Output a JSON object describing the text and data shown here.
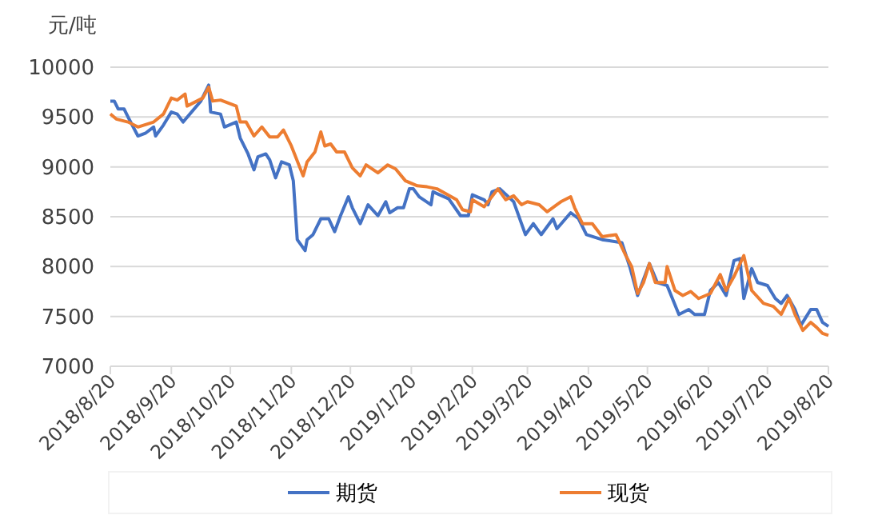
{
  "chart_data": {
    "type": "line",
    "ylabel": "元/吨",
    "xlim": [
      "2018-08-20",
      "2019-08-20"
    ],
    "xticks": [
      {
        "value": "2018-08-20",
        "label": "2018/8/20"
      },
      {
        "value": "2018-09-20",
        "label": "2018/9/20"
      },
      {
        "value": "2018-10-20",
        "label": "2018/10/20"
      },
      {
        "value": "2018-11-20",
        "label": "2018/11/20"
      },
      {
        "value": "2018-12-20",
        "label": "2018/12/20"
      },
      {
        "value": "2019-01-20",
        "label": "2019/1/20"
      },
      {
        "value": "2019-02-20",
        "label": "2019/2/20"
      },
      {
        "value": "2019-03-20",
        "label": "2019/3/20"
      },
      {
        "value": "2019-04-20",
        "label": "2019/4/20"
      },
      {
        "value": "2019-05-20",
        "label": "2019/5/20"
      },
      {
        "value": "2019-06-20",
        "label": "2019/6/20"
      },
      {
        "value": "2019-07-20",
        "label": "2019/7/20"
      },
      {
        "value": "2019-08-20",
        "label": "2019/8/20"
      }
    ],
    "ylim": [
      7000,
      10000
    ],
    "yticks": [
      7000,
      7500,
      8000,
      8500,
      9000,
      9500,
      10000
    ],
    "grid": "y",
    "legend": "bottom",
    "marker": "none",
    "line_style": "solid",
    "series": [
      {
        "name": "期货",
        "color": "#4472c4",
        "x": [
          "2018-08-20",
          "2018-08-22",
          "2018-08-24",
          "2018-08-27",
          "2018-08-29",
          "2018-09-03",
          "2018-09-07",
          "2018-09-11",
          "2018-09-12",
          "2018-09-16",
          "2018-09-20",
          "2018-09-23",
          "2018-09-26",
          "2018-10-05",
          "2018-10-09",
          "2018-10-10",
          "2018-10-15",
          "2018-10-17",
          "2018-10-23",
          "2018-10-25",
          "2018-10-29",
          "2018-11-01",
          "2018-11-03",
          "2018-11-07",
          "2018-11-09",
          "2018-11-12",
          "2018-11-15",
          "2018-11-19",
          "2018-11-21",
          "2018-11-23",
          "2018-11-27",
          "2018-11-28",
          "2018-12-01",
          "2018-12-05",
          "2018-12-09",
          "2018-12-12",
          "2018-12-15",
          "2018-12-19",
          "2018-12-21",
          "2018-12-25",
          "2018-12-29",
          "2019-01-03",
          "2019-01-07",
          "2019-01-09",
          "2019-01-13",
          "2019-01-16",
          "2019-01-19",
          "2019-01-21",
          "2019-01-24",
          "2019-01-30",
          "2019-01-31",
          "2019-02-08",
          "2019-02-14",
          "2019-02-18",
          "2019-02-20",
          "2019-02-26",
          "2019-02-28",
          "2019-03-02",
          "2019-03-06",
          "2019-03-13",
          "2019-03-19",
          "2019-03-23",
          "2019-03-27",
          "2019-04-02",
          "2019-04-04",
          "2019-04-11",
          "2019-04-15",
          "2019-04-19",
          "2019-04-27",
          "2019-05-07",
          "2019-05-11",
          "2019-05-15",
          "2019-05-21",
          "2019-05-25",
          "2019-05-30",
          "2019-06-05",
          "2019-06-10",
          "2019-06-13",
          "2019-06-18",
          "2019-06-21",
          "2019-06-25",
          "2019-06-29",
          "2019-07-03",
          "2019-07-06",
          "2019-07-08",
          "2019-07-12",
          "2019-07-15",
          "2019-07-20",
          "2019-07-24",
          "2019-07-27",
          "2019-07-30",
          "2019-08-03",
          "2019-08-06",
          "2019-08-11",
          "2019-08-14",
          "2019-08-17",
          "2019-08-20"
        ],
        "values": [
          9660,
          9660,
          9580,
          9580,
          9500,
          9310,
          9340,
          9400,
          9310,
          9420,
          9550,
          9530,
          9450,
          9660,
          9820,
          9550,
          9530,
          9400,
          9450,
          9290,
          9130,
          8970,
          9100,
          9130,
          9070,
          8890,
          9050,
          9020,
          8860,
          8270,
          8160,
          8270,
          8320,
          8480,
          8480,
          8350,
          8510,
          8700,
          8590,
          8430,
          8620,
          8510,
          8650,
          8540,
          8590,
          8590,
          8780,
          8780,
          8700,
          8620,
          8750,
          8680,
          8510,
          8510,
          8720,
          8670,
          8620,
          8750,
          8780,
          8650,
          8320,
          8430,
          8320,
          8480,
          8380,
          8540,
          8480,
          8320,
          8270,
          8240,
          8000,
          7710,
          8030,
          7840,
          7810,
          7520,
          7570,
          7520,
          7520,
          7760,
          7840,
          7710,
          8060,
          8080,
          7680,
          7980,
          7840,
          7810,
          7680,
          7630,
          7710,
          7570,
          7410,
          7570,
          7570,
          7440,
          7400
        ]
      },
      {
        "name": "现货",
        "color": "#ed7d31",
        "x": [
          "2018-08-20",
          "2018-08-23",
          "2018-08-29",
          "2018-09-03",
          "2018-09-11",
          "2018-09-16",
          "2018-09-20",
          "2018-09-23",
          "2018-09-27",
          "2018-09-28",
          "2018-10-06",
          "2018-10-09",
          "2018-10-11",
          "2018-10-15",
          "2018-10-19",
          "2018-10-23",
          "2018-10-25",
          "2018-10-28",
          "2018-11-01",
          "2018-11-05",
          "2018-11-09",
          "2018-11-13",
          "2018-11-16",
          "2018-11-20",
          "2018-11-26",
          "2018-11-28",
          "2018-12-02",
          "2018-12-05",
          "2018-12-07",
          "2018-12-10",
          "2018-12-13",
          "2018-12-17",
          "2018-12-21",
          "2018-12-25",
          "2018-12-28",
          "2019-01-03",
          "2019-01-08",
          "2019-01-12",
          "2019-01-17",
          "2019-01-23",
          "2019-01-28",
          "2019-02-02",
          "2019-02-12",
          "2019-02-15",
          "2019-02-19",
          "2019-02-20",
          "2019-02-26",
          "2019-03-05",
          "2019-03-09",
          "2019-03-13",
          "2019-03-17",
          "2019-03-20",
          "2019-03-26",
          "2019-03-30",
          "2019-04-06",
          "2019-04-11",
          "2019-04-13",
          "2019-04-17",
          "2019-04-22",
          "2019-04-27",
          "2019-05-04",
          "2019-05-09",
          "2019-05-12",
          "2019-05-15",
          "2019-05-18",
          "2019-05-21",
          "2019-05-24",
          "2019-05-29",
          "2019-05-30",
          "2019-06-03",
          "2019-06-07",
          "2019-06-11",
          "2019-06-15",
          "2019-06-21",
          "2019-06-26",
          "2019-06-29",
          "2019-07-03",
          "2019-07-08",
          "2019-07-12",
          "2019-07-18",
          "2019-07-23",
          "2019-07-27",
          "2019-07-31",
          "2019-08-03",
          "2019-08-07",
          "2019-08-11",
          "2019-08-14",
          "2019-08-17",
          "2019-08-20"
        ],
        "values": [
          9530,
          9480,
          9450,
          9400,
          9450,
          9530,
          9690,
          9670,
          9730,
          9610,
          9690,
          9800,
          9660,
          9670,
          9640,
          9610,
          9450,
          9450,
          9310,
          9400,
          9300,
          9300,
          9370,
          9210,
          8910,
          9050,
          9150,
          9350,
          9210,
          9230,
          9150,
          9150,
          8990,
          8910,
          9020,
          8940,
          9020,
          8980,
          8860,
          8810,
          8800,
          8780,
          8670,
          8570,
          8550,
          8670,
          8600,
          8780,
          8670,
          8710,
          8620,
          8650,
          8620,
          8550,
          8650,
          8700,
          8590,
          8430,
          8430,
          8300,
          8320,
          8110,
          8000,
          7730,
          7840,
          8030,
          7840,
          7840,
          8000,
          7760,
          7710,
          7750,
          7680,
          7730,
          7920,
          7760,
          7900,
          8110,
          7760,
          7630,
          7600,
          7520,
          7680,
          7520,
          7360,
          7440,
          7390,
          7330,
          7310
        ]
      }
    ]
  }
}
